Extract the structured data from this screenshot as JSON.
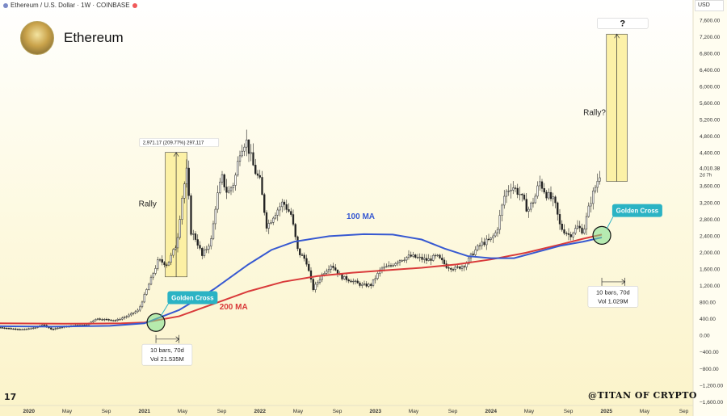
{
  "header": {
    "symbol": "Ethereum / U.S. Dollar · 1W · COINBASE"
  },
  "brand": {
    "name": "Ethereum"
  },
  "currency": "USD",
  "watermark": "@TITAN OF CRYPTO",
  "tv_logo": "17",
  "chart_data": {
    "type": "candlestick-line",
    "title": "Ethereum / U.S. Dollar · 1W · COINBASE",
    "x_range": [
      2019.75,
      2025.75
    ],
    "x_ticks": [
      {
        "t": 2020.0,
        "label": "2020",
        "bold": true
      },
      {
        "t": 2020.33,
        "label": "May",
        "bold": false
      },
      {
        "t": 2020.67,
        "label": "Sep",
        "bold": false
      },
      {
        "t": 2021.0,
        "label": "2021",
        "bold": true
      },
      {
        "t": 2021.33,
        "label": "May",
        "bold": false
      },
      {
        "t": 2021.67,
        "label": "Sep",
        "bold": false
      },
      {
        "t": 2022.0,
        "label": "2022",
        "bold": true
      },
      {
        "t": 2022.33,
        "label": "May",
        "bold": false
      },
      {
        "t": 2022.67,
        "label": "Sep",
        "bold": false
      },
      {
        "t": 2023.0,
        "label": "2023",
        "bold": true
      },
      {
        "t": 2023.33,
        "label": "May",
        "bold": false
      },
      {
        "t": 2023.67,
        "label": "Sep",
        "bold": false
      },
      {
        "t": 2024.0,
        "label": "2024",
        "bold": true
      },
      {
        "t": 2024.33,
        "label": "May",
        "bold": false
      },
      {
        "t": 2024.67,
        "label": "Sep",
        "bold": false
      },
      {
        "t": 2025.0,
        "label": "2025",
        "bold": true
      },
      {
        "t": 2025.33,
        "label": "May",
        "bold": false
      },
      {
        "t": 2025.67,
        "label": "Sep",
        "bold": false
      }
    ],
    "y_ticks": [
      {
        "v": 7600,
        "label": "7,600.00"
      },
      {
        "v": 7200,
        "label": "7,200.00"
      },
      {
        "v": 6800,
        "label": "6,800.00"
      },
      {
        "v": 6400,
        "label": "6,400.00"
      },
      {
        "v": 6000,
        "label": "6,000.00"
      },
      {
        "v": 5600,
        "label": "5,600.00"
      },
      {
        "v": 5200,
        "label": "5,200.00"
      },
      {
        "v": 4800,
        "label": "4,800.00"
      },
      {
        "v": 4400,
        "label": "4,400.00"
      },
      {
        "v": 3600,
        "label": "3,600.00"
      },
      {
        "v": 3200,
        "label": "3,200.00"
      },
      {
        "v": 2800,
        "label": "2,800.00"
      },
      {
        "v": 2400,
        "label": "2,400.00"
      },
      {
        "v": 2000,
        "label": "2,000.00"
      },
      {
        "v": 1600,
        "label": "1,600.00"
      },
      {
        "v": 1200,
        "label": "1,200.00"
      },
      {
        "v": 800,
        "label": "800.00"
      },
      {
        "v": 400,
        "label": "400.00"
      },
      {
        "v": 0,
        "label": "0.00"
      },
      {
        "v": -400,
        "label": "−400.00"
      },
      {
        "v": -800,
        "label": "−800.00"
      },
      {
        "v": -1200,
        "label": "−1,200.00"
      },
      {
        "v": -1600,
        "label": "−1,600.00"
      }
    ],
    "y_range": [
      -1700,
      7800
    ],
    "current_price": {
      "value": 4010.38,
      "label": "4,010.38",
      "countdown": "2d 7h"
    },
    "price_path": [
      [
        2019.75,
        180
      ],
      [
        2019.85,
        150
      ],
      [
        2019.95,
        130
      ],
      [
        2020.05,
        170
      ],
      [
        2020.12,
        250
      ],
      [
        2020.2,
        130
      ],
      [
        2020.3,
        200
      ],
      [
        2020.4,
        230
      ],
      [
        2020.5,
        240
      ],
      [
        2020.58,
        390
      ],
      [
        2020.67,
        370
      ],
      [
        2020.75,
        350
      ],
      [
        2020.85,
        450
      ],
      [
        2020.95,
        600
      ],
      [
        2021.05,
        1300
      ],
      [
        2021.12,
        1800
      ],
      [
        2021.2,
        1700
      ],
      [
        2021.28,
        2200
      ],
      [
        2021.33,
        3400
      ],
      [
        2021.37,
        4000
      ],
      [
        2021.4,
        2500
      ],
      [
        2021.45,
        2300
      ],
      [
        2021.5,
        1900
      ],
      [
        2021.58,
        2300
      ],
      [
        2021.62,
        3200
      ],
      [
        2021.67,
        3800
      ],
      [
        2021.72,
        3400
      ],
      [
        2021.78,
        3700
      ],
      [
        2021.83,
        4500
      ],
      [
        2021.88,
        4700
      ],
      [
        2021.95,
        4000
      ],
      [
        2022.0,
        3700
      ],
      [
        2022.06,
        2600
      ],
      [
        2022.12,
        2900
      ],
      [
        2022.2,
        3200
      ],
      [
        2022.27,
        2900
      ],
      [
        2022.33,
        2000
      ],
      [
        2022.4,
        1800
      ],
      [
        2022.46,
        1100
      ],
      [
        2022.55,
        1500
      ],
      [
        2022.62,
        1700
      ],
      [
        2022.7,
        1400
      ],
      [
        2022.8,
        1300
      ],
      [
        2022.88,
        1200
      ],
      [
        2022.96,
        1200
      ],
      [
        2023.05,
        1600
      ],
      [
        2023.12,
        1650
      ],
      [
        2023.2,
        1800
      ],
      [
        2023.3,
        1900
      ],
      [
        2023.38,
        1850
      ],
      [
        2023.45,
        1800
      ],
      [
        2023.53,
        1900
      ],
      [
        2023.62,
        1650
      ],
      [
        2023.7,
        1600
      ],
      [
        2023.78,
        1700
      ],
      [
        2023.85,
        2000
      ],
      [
        2023.92,
        2200
      ],
      [
        2024.0,
        2300
      ],
      [
        2024.05,
        2500
      ],
      [
        2024.12,
        3400
      ],
      [
        2024.18,
        3600
      ],
      [
        2024.25,
        3400
      ],
      [
        2024.32,
        3000
      ],
      [
        2024.38,
        3300
      ],
      [
        2024.42,
        3700
      ],
      [
        2024.48,
        3400
      ],
      [
        2024.55,
        3200
      ],
      [
        2024.6,
        2600
      ],
      [
        2024.68,
        2400
      ],
      [
        2024.75,
        2600
      ],
      [
        2024.8,
        2500
      ],
      [
        2024.86,
        3200
      ],
      [
        2024.92,
        3700
      ],
      [
        2024.96,
        4010
      ]
    ],
    "ma100_path": [
      [
        2019.75,
        210
      ],
      [
        2020.2,
        200
      ],
      [
        2020.7,
        220
      ],
      [
        2021.0,
        280
      ],
      [
        2021.3,
        600
      ],
      [
        2021.6,
        1100
      ],
      [
        2021.9,
        1700
      ],
      [
        2022.1,
        2050
      ],
      [
        2022.3,
        2250
      ],
      [
        2022.6,
        2380
      ],
      [
        2022.9,
        2430
      ],
      [
        2023.15,
        2420
      ],
      [
        2023.4,
        2300
      ],
      [
        2023.6,
        2080
      ],
      [
        2023.8,
        1900
      ],
      [
        2024.0,
        1850
      ],
      [
        2024.2,
        1850
      ],
      [
        2024.4,
        2000
      ],
      [
        2024.6,
        2150
      ],
      [
        2024.8,
        2250
      ],
      [
        2024.96,
        2350
      ]
    ],
    "ma200_path": [
      [
        2019.75,
        280
      ],
      [
        2020.3,
        270
      ],
      [
        2020.8,
        280
      ],
      [
        2021.0,
        300
      ],
      [
        2021.3,
        450
      ],
      [
        2021.6,
        750
      ],
      [
        2021.9,
        1050
      ],
      [
        2022.2,
        1280
      ],
      [
        2022.5,
        1420
      ],
      [
        2022.8,
        1500
      ],
      [
        2023.1,
        1560
      ],
      [
        2023.4,
        1620
      ],
      [
        2023.7,
        1700
      ],
      [
        2024.0,
        1820
      ],
      [
        2024.3,
        1980
      ],
      [
        2024.6,
        2180
      ],
      [
        2024.8,
        2320
      ],
      [
        2024.96,
        2420
      ]
    ],
    "labels": {
      "ma100": {
        "text": "100 MA",
        "t": 2022.75,
        "v": 2800,
        "color": "#3759d1"
      },
      "ma200": {
        "text": "200 MA",
        "t": 2021.65,
        "v": 620,
        "color": "#d93a3a"
      }
    },
    "rally_boxes": [
      {
        "t0": 2021.18,
        "t1": 2021.37,
        "v0": 1400,
        "v1": 4400,
        "title": "Rally",
        "title_t": 2020.95,
        "title_v": 3100
      },
      {
        "t0": 2025.0,
        "t1": 2025.18,
        "v0": 3700,
        "v1": 7250,
        "title": "Rally?",
        "title_t": 2024.8,
        "title_v": 5300
      }
    ],
    "measure_label": {
      "text": "2,971.17 (209.77%) 297,117",
      "t": 2021.0,
      "v": 4600
    },
    "question_label": {
      "text": "?",
      "t0": 2024.92,
      "t1": 2025.36,
      "v": 7500
    },
    "golden_cross": [
      {
        "t": 2021.1,
        "v": 300,
        "label": "Golden Cross",
        "label_t": 2021.2,
        "label_v": 900,
        "range_t0": 2021.1,
        "range_t1": 2021.3,
        "range_v": -100,
        "info_lines": [
          "10 bars, 70d",
          "Vol 21.535M"
        ],
        "info_t": 2021.05,
        "info_v": -400
      },
      {
        "t": 2024.96,
        "v": 2400,
        "label": "Golden Cross",
        "label_t": 2025.05,
        "label_v": 3000,
        "range_t0": 2024.96,
        "range_t1": 2025.16,
        "range_v": 1280,
        "info_lines": [
          "10 bars, 70d",
          "Vol 1.029M"
        ],
        "info_t": 2024.91,
        "info_v": 1000
      }
    ]
  }
}
